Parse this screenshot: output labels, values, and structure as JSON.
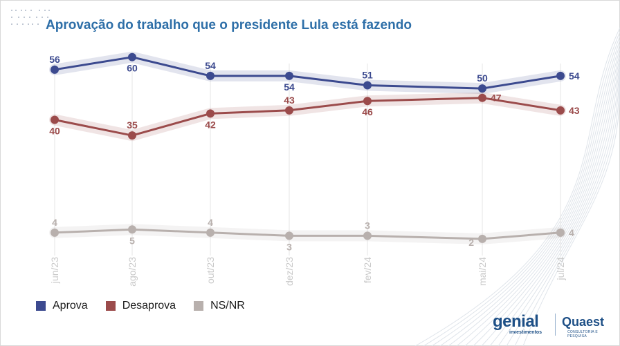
{
  "title": "Aprovação do trabalho que o presidente Lula está fazendo",
  "colors": {
    "aprova": "#3c4a8f",
    "desaprova": "#9b4b4b",
    "nsnr": "#b8b0ad",
    "title": "#2e6fa8"
  },
  "legend": {
    "items": [
      {
        "label": "Aprova",
        "color": "#3c4a8f"
      },
      {
        "label": "Desaprova",
        "color": "#9b4b4b"
      },
      {
        "label": "NS/NR",
        "color": "#b8b0ad"
      }
    ]
  },
  "logos": {
    "genial": "genial",
    "genial_sub": "investimentos",
    "quaest": "Quaest",
    "quaest_sub": "CONSULTORIA E PESQUISA"
  },
  "chart_data": {
    "type": "line",
    "title": "Aprovação do trabalho que o presidente Lula está fazendo",
    "categories": [
      "jun/23",
      "ago/23",
      "out/23",
      "dez/23",
      "fev/24",
      "mai/24",
      "jul/24"
    ],
    "axis_tick_labels": [
      "jun/23",
      "ago/23",
      "out/23",
      "dez/23",
      "fev/24",
      "mai/24",
      "jul/24"
    ],
    "ylim": [
      0,
      65
    ],
    "grid": "vertical",
    "legend_position": "bottom-left",
    "series": [
      {
        "name": "Aprova",
        "values": [
          56,
          60,
          54,
          54,
          51,
          50,
          54
        ],
        "color": "#3c4a8f",
        "label_pos": [
          "above",
          "below",
          "above",
          "below",
          "above",
          "above",
          "right"
        ]
      },
      {
        "name": "Desaprova",
        "values": [
          40,
          35,
          42,
          43,
          46,
          47,
          43
        ],
        "color": "#9b4b4b",
        "label_pos": [
          "below",
          "above",
          "below",
          "above",
          "below",
          "right",
          "right"
        ]
      },
      {
        "name": "NS/NR",
        "values": [
          4,
          5,
          4,
          3,
          3,
          2,
          4
        ],
        "color": "#b8b0ad",
        "label_pos": [
          "above",
          "below",
          "above",
          "below",
          "above",
          "left",
          "right"
        ]
      }
    ]
  }
}
